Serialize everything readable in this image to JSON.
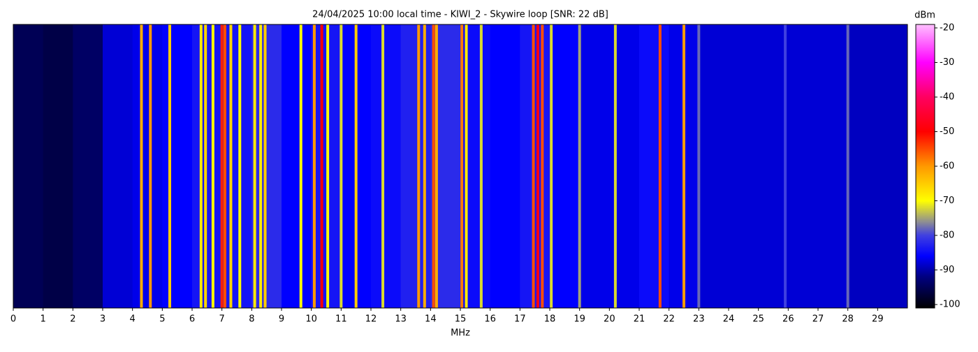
{
  "chart_data": {
    "type": "spectrogram",
    "title": "24/04/2025 10:00 local time - KIWI_2 - Skywire loop [SNR: 22 dB]",
    "xlabel": "MHz",
    "colorbar_label": "dBm",
    "xlim": [
      0,
      30
    ],
    "xticks": [
      0,
      1,
      2,
      3,
      4,
      5,
      6,
      7,
      8,
      9,
      10,
      11,
      12,
      13,
      14,
      15,
      16,
      17,
      18,
      19,
      20,
      21,
      22,
      23,
      24,
      25,
      26,
      27,
      28,
      29
    ],
    "clim": [
      -101,
      -19
    ],
    "cticks": [
      -20,
      -30,
      -40,
      -50,
      -60,
      -70,
      -80,
      -90,
      -100
    ],
    "colormap": [
      {
        "value": -101,
        "color": "#000000"
      },
      {
        "value": -92,
        "color": "#000080"
      },
      {
        "value": -86,
        "color": "#0000ff"
      },
      {
        "value": -80,
        "color": "#4040e0"
      },
      {
        "value": -76,
        "color": "#909090"
      },
      {
        "value": -70,
        "color": "#ffff00"
      },
      {
        "value": -60,
        "color": "#ff9900"
      },
      {
        "value": -50,
        "color": "#ff0000"
      },
      {
        "value": -40,
        "color": "#ff0060"
      },
      {
        "value": -30,
        "color": "#ff00ff"
      },
      {
        "value": -19,
        "color": "#ffc0ff"
      }
    ],
    "noise": {
      "x": [
        0,
        1,
        2,
        3,
        4,
        5,
        6,
        7,
        8,
        9,
        10,
        11,
        12,
        13,
        14,
        15,
        16,
        17,
        18,
        19,
        20,
        21,
        22,
        23,
        24,
        25,
        26,
        27,
        28,
        29
      ],
      "values": [
        -95,
        -96,
        -94,
        -88,
        -87,
        -86,
        -84,
        -84,
        -82,
        -86,
        -84,
        -86,
        -85,
        -83,
        -82,
        -85,
        -86,
        -84,
        -86,
        -87,
        -87,
        -85,
        -87,
        -88,
        -88,
        -88,
        -88,
        -88,
        -89,
        -89
      ]
    },
    "signals": {
      "x": [
        4.3,
        4.6,
        5.25,
        6.3,
        6.45,
        6.7,
        7.0,
        7.1,
        7.3,
        7.6,
        8.1,
        8.3,
        8.45,
        9.65,
        10.1,
        10.35,
        10.55,
        11.0,
        11.5,
        12.4,
        13.6,
        13.8,
        14.1,
        14.2,
        15.05,
        15.2,
        15.7,
        17.45,
        17.6,
        17.75,
        18.05,
        19.0,
        20.2,
        21.7,
        22.5,
        23.0,
        25.9,
        28.0
      ],
      "values": [
        -62,
        -60,
        -65,
        -68,
        -66,
        -70,
        -52,
        -55,
        -66,
        -70,
        -68,
        -68,
        -65,
        -70,
        -60,
        -50,
        -70,
        -72,
        -65,
        -72,
        -60,
        -62,
        -55,
        -62,
        -58,
        -68,
        -72,
        -55,
        -48,
        -55,
        -72,
        -75,
        -72,
        -55,
        -60,
        -78,
        -80,
        -78
      ]
    }
  }
}
